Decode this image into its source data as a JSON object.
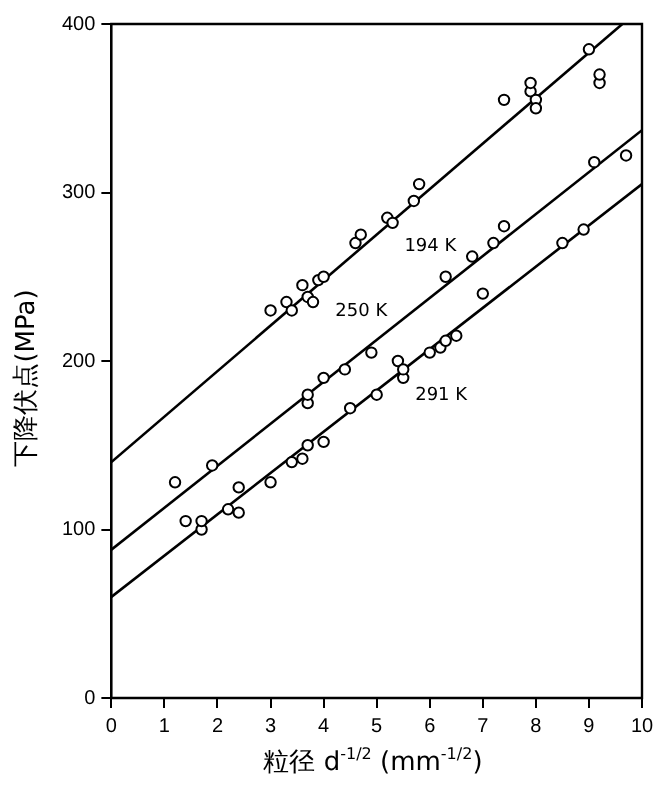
{
  "chart_data": {
    "type": "scatter",
    "xlabel": "粒径 d$^{-1/2}$ (mm$^{-1/2}$)",
    "ylabel": "下降伏点(MPa)",
    "xlim": [
      0,
      10
    ],
    "ylim": [
      0,
      400
    ],
    "xticks": [
      0,
      1,
      2,
      3,
      4,
      5,
      6,
      7,
      8,
      9,
      10
    ],
    "yticks": [
      0,
      100,
      200,
      300,
      400
    ],
    "grid": false,
    "legend": false,
    "marker": "circle",
    "series": [
      {
        "color": "#000000",
        "x": [
          3.0,
          3.3,
          3.4,
          3.6,
          3.7,
          3.8,
          3.9,
          4.0,
          4.6,
          4.7,
          5.2,
          5.3,
          5.7,
          5.8,
          7.4,
          7.9,
          7.9,
          8.0,
          8.0,
          9.0,
          9.2,
          9.2
        ],
        "values": [
          230,
          235,
          230,
          245,
          238,
          235,
          248,
          250,
          270,
          275,
          285,
          282,
          295,
          305,
          355,
          360,
          365,
          355,
          350,
          385,
          365,
          370
        ]
      },
      {
        "color": "#000000",
        "x": [
          1.2,
          1.9,
          2.4,
          3.7,
          3.7,
          4.0,
          4.4,
          4.9,
          5.4,
          5.5,
          6.3,
          6.8,
          7.2,
          7.4,
          9.1,
          9.7
        ],
        "values": [
          128,
          138,
          125,
          175,
          180,
          190,
          195,
          205,
          200,
          195,
          250,
          262,
          270,
          280,
          318,
          322
        ]
      },
      {
        "color": "#000000",
        "x": [
          1.4,
          1.7,
          1.7,
          2.2,
          2.4,
          3.0,
          3.4,
          3.6,
          3.7,
          4.0,
          4.5,
          5.0,
          5.5,
          6.0,
          6.2,
          6.3,
          6.5,
          7.0,
          8.5,
          8.9
        ],
        "values": [
          105,
          100,
          105,
          112,
          110,
          128,
          140,
          142,
          150,
          152,
          172,
          180,
          190,
          205,
          208,
          212,
          215,
          240,
          270,
          278
        ]
      },
      {
        "type": "line",
        "name": "194 K",
        "color": "#000000",
        "marker": "none",
        "x": [
          0,
          9.63
        ],
        "values": [
          140,
          400
        ]
      },
      {
        "type": "line",
        "name": "250 K",
        "color": "#000000",
        "marker": "none",
        "x": [
          0,
          10
        ],
        "values": [
          88,
          337
        ]
      },
      {
        "type": "line",
        "name": "291 K",
        "color": "#000000",
        "marker": "none",
        "x": [
          0,
          10
        ],
        "values": [
          60,
          305
        ]
      }
    ]
  }
}
